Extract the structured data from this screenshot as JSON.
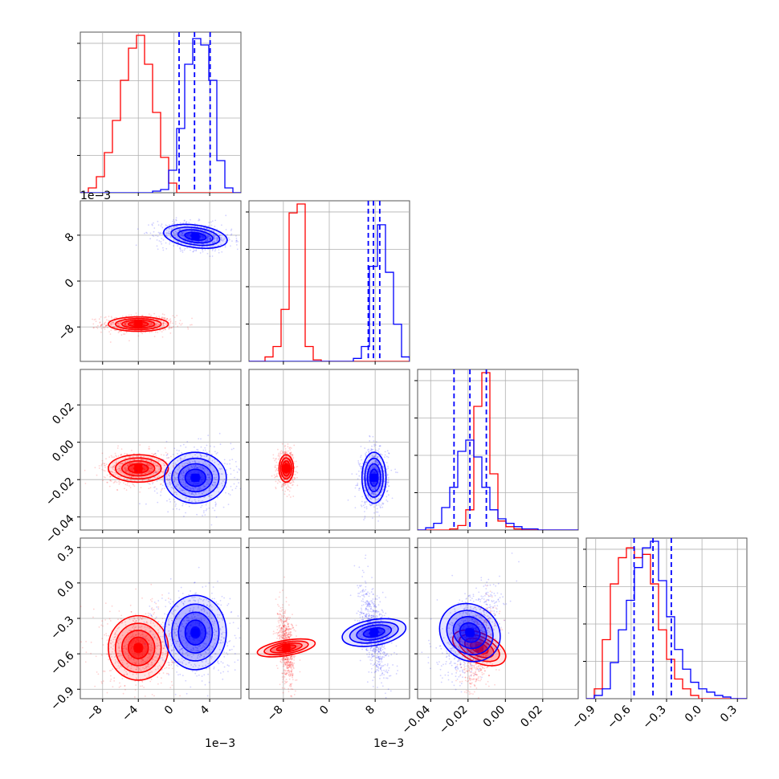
{
  "chart_data": {
    "type": "corner",
    "colors": {
      "a": "#ff0000",
      "b": "#0000ff"
    },
    "n_params": 4,
    "ranges": [
      [
        -10.5,
        7.5
      ],
      [
        -14.0,
        14.0
      ],
      [
        -0.047,
        0.039
      ],
      [
        -0.98,
        0.38
      ]
    ],
    "ticks": [
      [
        -8,
        -4,
        0,
        4
      ],
      [
        -8,
        0,
        8
      ],
      [
        -0.04,
        -0.02,
        0.0,
        0.02
      ],
      [
        -0.9,
        -0.6,
        -0.3,
        0.0,
        0.3
      ]
    ],
    "tick_labels": [
      [
        "−8",
        "−4",
        "0",
        "4"
      ],
      [
        "−8",
        "0",
        "8"
      ],
      [
        "−0.04",
        "−0.02",
        "0.00",
        "0.02"
      ],
      [
        "−0.9",
        "−0.6",
        "−0.3",
        "0.0",
        "0.3"
      ]
    ],
    "offset_labels": [
      "1e−3",
      "1e−3",
      "",
      ""
    ],
    "series": [
      {
        "color": "#ff0000",
        "means": [
          -4.0,
          -7.5,
          -0.014,
          -0.55
        ],
        "stds": [
          1.6,
          0.6,
          0.0035,
          0.13
        ],
        "correlations": {
          "0-1": 0.0,
          "0-2": 0.0,
          "0-3": 0.0,
          "1-2": 0.0,
          "1-3": -0.35,
          "2-3": 0.45
        },
        "quantile_lines": false
      },
      {
        "color": "#0000ff",
        "means": [
          2.4,
          7.8,
          -0.019,
          -0.42
        ],
        "stds": [
          1.65,
          1.0,
          0.0065,
          0.15
        ],
        "correlations": {
          "0-1": -0.25,
          "0-2": 0.0,
          "0-3": 0.0,
          "1-2": 0.0,
          "1-3": -0.5,
          "2-3": 0.55
        },
        "quantile_lines": true
      }
    ],
    "histograms": [
      {
        "bin_edges": [
          -10.5,
          -9.6,
          -8.7,
          -7.8,
          -6.9,
          -6.0,
          -5.1,
          -4.2,
          -3.3,
          -2.4,
          -1.5,
          -0.6,
          0.3,
          1.2,
          2.1,
          3.0,
          3.9,
          4.8,
          5.7,
          6.6,
          7.5
        ],
        "counts": [
          [
            0.0,
            3.0,
            10.0,
            25.0,
            45.0,
            70.0,
            90.0,
            98.0,
            80.0,
            50.0,
            22.0,
            6.0,
            0.0,
            0.0,
            0.0,
            0.0,
            0.0,
            0.0,
            0.0,
            0.0
          ],
          [
            0.0,
            0.0,
            0.0,
            0.0,
            0.0,
            0.0,
            0.0,
            0.0,
            0.0,
            1.0,
            2.0,
            14.0,
            40.0,
            80.0,
            96.0,
            92.0,
            70.0,
            20.0,
            3.0,
            0.0
          ]
        ],
        "quantiles": [
          0.57,
          2.3,
          4.05
        ]
      },
      {
        "bin_edges": [
          -14.0,
          -12.6,
          -11.2,
          -9.8,
          -8.4,
          -7.0,
          -5.6,
          -4.2,
          -2.8,
          -1.4,
          0.0,
          1.4,
          2.8,
          4.2,
          5.6,
          7.0,
          8.4,
          9.8,
          11.2,
          12.6,
          14.0
        ],
        "counts": [
          [
            0.0,
            0.0,
            3.0,
            10.0,
            35.0,
            100.0,
            106.0,
            10.0,
            1.0,
            0.0,
            0.0,
            0.0,
            0.0,
            0.0,
            0.0,
            0.0,
            0.0,
            0.0,
            0.0,
            0.0
          ],
          [
            0.0,
            0.0,
            0.0,
            0.0,
            0.0,
            0.0,
            0.0,
            0.0,
            0.0,
            0.0,
            0.0,
            0.0,
            0.0,
            2.0,
            10.0,
            64.0,
            92.0,
            60.0,
            25.0,
            3.0
          ]
        ],
        "quantiles": [
          6.8,
          7.7,
          8.8
        ]
      },
      {
        "bin_edges": [
          -0.047,
          -0.0427,
          -0.0384,
          -0.0341,
          -0.0298,
          -0.0255,
          -0.0212,
          -0.0169,
          -0.0126,
          -0.0083,
          -0.004,
          0.0003,
          0.0046,
          0.0089,
          0.0132,
          0.0175,
          0.0218,
          0.0261,
          0.0304,
          0.0347,
          0.039
        ],
        "counts": [
          [
            0.0,
            0.0,
            0.0,
            0.0,
            1.0,
            4.0,
            18.0,
            110.0,
            140.0,
            50.0,
            8.0,
            3.0,
            1.0,
            0.0,
            0.0,
            0.0,
            0.0,
            0.0,
            0.0,
            0.0
          ],
          [
            0.0,
            2.0,
            6.0,
            20.0,
            38.0,
            70.0,
            80.0,
            65.0,
            38.0,
            18.0,
            10.0,
            6.0,
            3.0,
            1.0,
            1.0,
            0.0,
            0.0,
            0.0,
            0.0,
            0.0
          ]
        ],
        "quantiles": [
          -0.0275,
          -0.019,
          -0.0102
        ]
      },
      {
        "bin_edges": [
          -0.98,
          -0.912,
          -0.844,
          -0.776,
          -0.708,
          -0.64,
          -0.572,
          -0.504,
          -0.436,
          -0.368,
          -0.3,
          -0.232,
          -0.164,
          -0.096,
          -0.028,
          0.04,
          0.108,
          0.176,
          0.244,
          0.312,
          0.38
        ],
        "counts": [
          [
            0.0,
            6.0,
            36.0,
            70.0,
            86.0,
            92.0,
            86.0,
            88.0,
            70.0,
            42.0,
            24.0,
            12.0,
            6.0,
            2.0,
            0.0,
            0.0,
            0.0,
            0.0,
            0.0,
            0.0
          ],
          [
            0.0,
            2.0,
            6.0,
            22.0,
            42.0,
            60.0,
            80.0,
            92.0,
            96.0,
            72.0,
            50.0,
            30.0,
            18.0,
            10.0,
            6.0,
            4.0,
            2.0,
            1.0,
            0.0,
            0.0
          ]
        ],
        "quantiles": [
          -0.575,
          -0.415,
          -0.26
        ]
      }
    ]
  }
}
